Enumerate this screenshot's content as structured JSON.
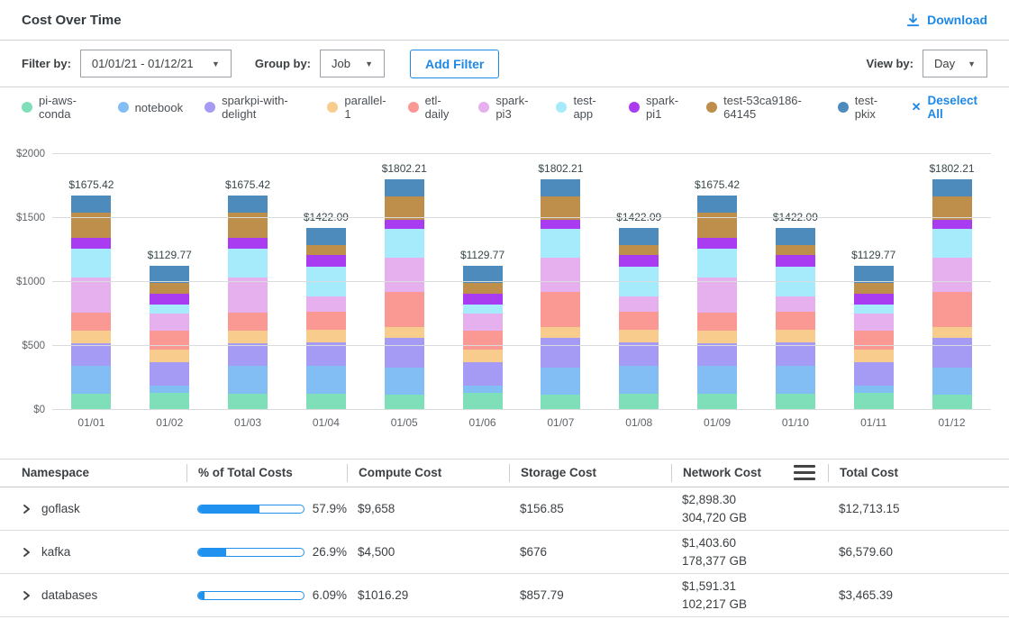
{
  "header": {
    "title": "Cost Over Time",
    "download_label": "Download"
  },
  "filters": {
    "filter_by_label": "Filter by:",
    "date_range_value": "01/01/21 - 01/12/21",
    "group_by_label": "Group by:",
    "group_by_value": "Job",
    "add_filter_label": "Add Filter",
    "view_by_label": "View by:",
    "view_by_value": "Day"
  },
  "legend": {
    "deselect_all_label": "Deselect All",
    "items": [
      {
        "name": "pi-aws-conda",
        "color": "#7fdfb8"
      },
      {
        "name": "notebook",
        "color": "#82bef3"
      },
      {
        "name": "sparkpi-with-delight",
        "color": "#a59bf5"
      },
      {
        "name": "parallel-1",
        "color": "#f8cc8c"
      },
      {
        "name": "etl-daily",
        "color": "#fa9894"
      },
      {
        "name": "spark-pi3",
        "color": "#e6afed"
      },
      {
        "name": "test-app",
        "color": "#a5ebfb"
      },
      {
        "name": "spark-pi1",
        "color": "#a93bf0"
      },
      {
        "name": "test-53ca9186-64145",
        "color": "#be8e4b"
      },
      {
        "name": "test-pkix",
        "color": "#4e8bbd"
      }
    ]
  },
  "chart_data": {
    "type": "bar",
    "stacked": true,
    "title": "Cost Over Time",
    "xlabel": "",
    "ylabel": "",
    "ymax": 2000,
    "ylim": [
      0,
      2000
    ],
    "grid": true,
    "legend_position": "top",
    "x": [
      "01/01",
      "01/02",
      "01/03",
      "01/04",
      "01/05",
      "01/06",
      "01/07",
      "01/08",
      "01/09",
      "01/10",
      "01/11",
      "01/12"
    ],
    "yticks": [
      {
        "label": "$0",
        "value": 0
      },
      {
        "label": "$500",
        "value": 500
      },
      {
        "label": "$1000",
        "value": 1000
      },
      {
        "label": "$1500",
        "value": 1500
      },
      {
        "label": "$2000",
        "value": 2000
      }
    ],
    "totals": [
      1675.42,
      1129.77,
      1675.42,
      1422.09,
      1802.21,
      1129.77,
      1802.21,
      1422.09,
      1675.42,
      1422.09,
      1129.77,
      1802.21
    ],
    "total_labels": [
      "$1675.42",
      "$1129.77",
      "$1675.42",
      "$1422.09",
      "$1802.21",
      "$1129.77",
      "$1802.21",
      "$1422.09",
      "$1675.42",
      "$1422.09",
      "$1129.77",
      "$1802.21"
    ],
    "series": [
      {
        "name": "pi-aws-conda",
        "color": "#7fdfb8",
        "values": [
          129,
          134,
          129,
          124,
          123,
          134,
          123,
          124,
          129,
          124,
          134,
          123
        ]
      },
      {
        "name": "notebook",
        "color": "#82bef3",
        "values": [
          213,
          58,
          213,
          222,
          208,
          58,
          208,
          222,
          213,
          222,
          58,
          208
        ]
      },
      {
        "name": "sparkpi-with-delight",
        "color": "#a59bf5",
        "values": [
          176,
          182,
          176,
          185,
          236,
          182,
          236,
          185,
          176,
          185,
          182,
          236
        ]
      },
      {
        "name": "parallel-1",
        "color": "#f8cc8c",
        "values": [
          105,
          101,
          105,
          99,
          83,
          101,
          83,
          99,
          105,
          99,
          101,
          83
        ]
      },
      {
        "name": "etl-daily",
        "color": "#fa9894",
        "values": [
          140,
          146,
          140,
          135,
          272,
          146,
          272,
          135,
          140,
          135,
          146,
          272
        ]
      },
      {
        "name": "spark-pi3",
        "color": "#e6afed",
        "values": [
          276,
          136,
          276,
          124,
          272,
          136,
          272,
          124,
          276,
          124,
          136,
          272
        ]
      },
      {
        "name": "test-app",
        "color": "#a5ebfb",
        "values": [
          225,
          70,
          225,
          234,
          220,
          70,
          220,
          234,
          225,
          234,
          70,
          220
        ]
      },
      {
        "name": "spark-pi1",
        "color": "#a93bf0",
        "values": [
          80,
          81,
          80,
          91,
          76,
          81,
          76,
          91,
          80,
          91,
          81,
          76
        ]
      },
      {
        "name": "test-53ca9186-64145",
        "color": "#be8e4b",
        "values": [
          196,
          83,
          196,
          74,
          182,
          83,
          182,
          74,
          196,
          74,
          83,
          182
        ]
      },
      {
        "name": "test-pkix",
        "color": "#4e8bbd",
        "values": [
          135.42,
          138.77,
          135.42,
          134.09,
          130.21,
          138.77,
          130.21,
          134.09,
          135.42,
          134.09,
          138.77,
          130.21
        ]
      }
    ]
  },
  "table": {
    "columns": [
      "Namespace",
      "% of Total Costs",
      "Compute Cost",
      "Storage Cost",
      "Network  Cost",
      "Total Cost"
    ],
    "rows": [
      {
        "namespace": "goflask",
        "pct": 57.9,
        "pct_label": "57.9%",
        "compute": "$9,658",
        "storage": "$156.85",
        "network_cost": "$2,898.30",
        "network_gb": "304,720 GB",
        "total": "$12,713.15"
      },
      {
        "namespace": "kafka",
        "pct": 26.9,
        "pct_label": "26.9%",
        "compute": "$4,500",
        "storage": "$676",
        "network_cost": "$1,403.60",
        "network_gb": "178,377 GB",
        "total": "$6,579.60"
      },
      {
        "namespace": "databases",
        "pct": 6.09,
        "pct_label": "6.09%",
        "compute": "$1016.29",
        "storage": "$857.79",
        "network_cost": "$1,591.31",
        "network_gb": "102,217 GB",
        "total": "$3,465.39"
      }
    ]
  },
  "colors": {
    "accent": "#1e88e5",
    "progress_fill": "#2191f0",
    "grid": "#d9dbdd"
  }
}
